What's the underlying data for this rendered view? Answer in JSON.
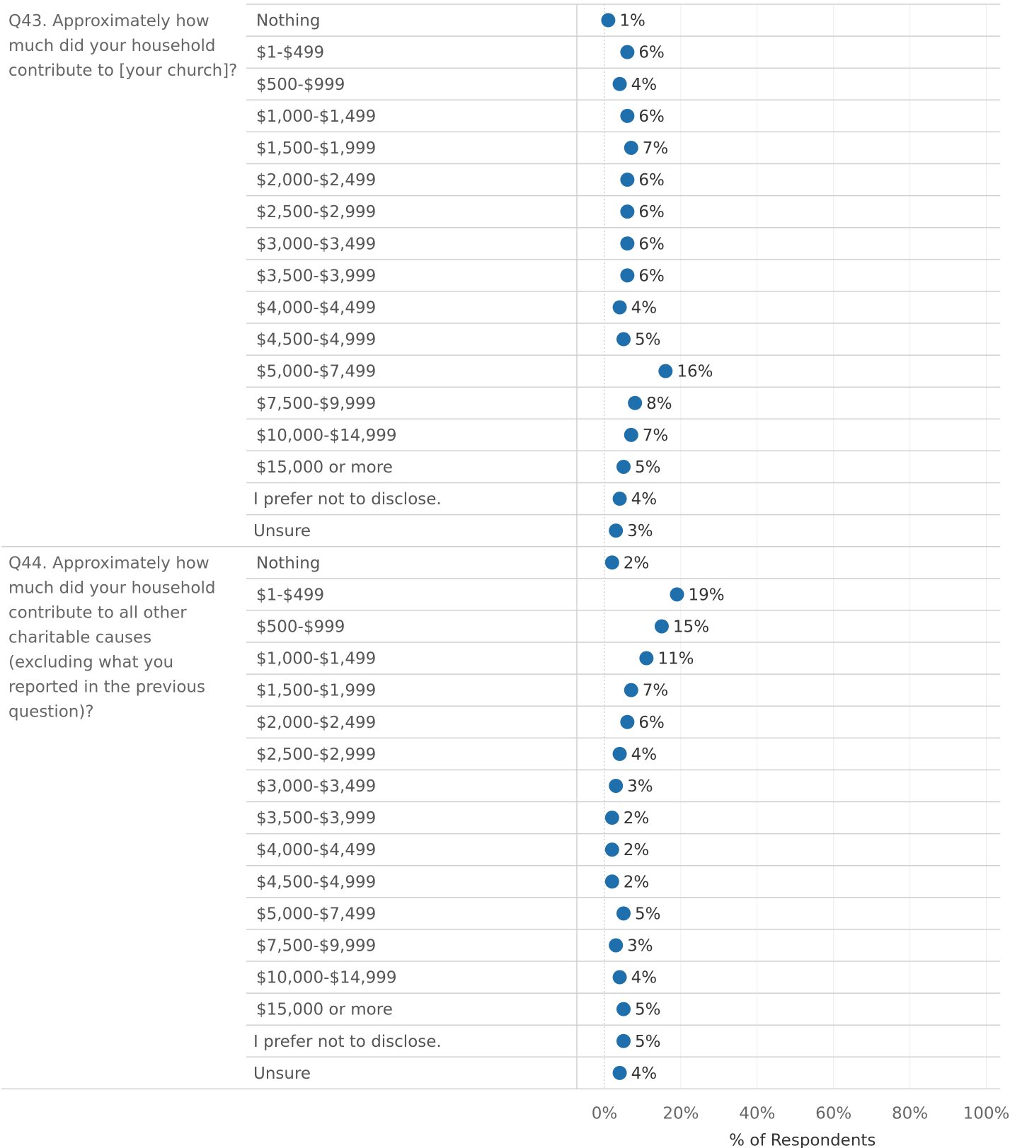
{
  "chart_data": {
    "type": "scatter",
    "xlabel": "% of Respondents",
    "xlim": [
      0,
      100
    ],
    "x_ticks": [
      0,
      20,
      40,
      60,
      80,
      100
    ],
    "x_tick_labels": [
      "0%",
      "20%",
      "40%",
      "60%",
      "80%",
      "100%"
    ],
    "marker_color": "#1f6fad",
    "groups": [
      {
        "question_lines": [
          "Q43. Approximately how",
          "much did your household",
          "contribute to [your church]?"
        ],
        "rows": [
          {
            "category": "Nothing",
            "value": 1,
            "label": "1%"
          },
          {
            "category": "$1-$499",
            "value": 6,
            "label": "6%"
          },
          {
            "category": "$500-$999",
            "value": 4,
            "label": "4%"
          },
          {
            "category": "$1,000-$1,499",
            "value": 6,
            "label": "6%"
          },
          {
            "category": "$1,500-$1,999",
            "value": 7,
            "label": "7%"
          },
          {
            "category": "$2,000-$2,499",
            "value": 6,
            "label": "6%"
          },
          {
            "category": "$2,500-$2,999",
            "value": 6,
            "label": "6%"
          },
          {
            "category": "$3,000-$3,499",
            "value": 6,
            "label": "6%"
          },
          {
            "category": "$3,500-$3,999",
            "value": 6,
            "label": "6%"
          },
          {
            "category": "$4,000-$4,499",
            "value": 4,
            "label": "4%"
          },
          {
            "category": "$4,500-$4,999",
            "value": 5,
            "label": "5%"
          },
          {
            "category": "$5,000-$7,499",
            "value": 16,
            "label": "16%"
          },
          {
            "category": "$7,500-$9,999",
            "value": 8,
            "label": "8%"
          },
          {
            "category": "$10,000-$14,999",
            "value": 7,
            "label": "7%"
          },
          {
            "category": "$15,000 or more",
            "value": 5,
            "label": "5%"
          },
          {
            "category": "I prefer not to disclose.",
            "value": 4,
            "label": "4%"
          },
          {
            "category": "Unsure",
            "value": 3,
            "label": "3%"
          }
        ]
      },
      {
        "question_lines": [
          "Q44. Approximately how",
          "much did your household",
          "contribute to all other",
          "charitable causes",
          "(excluding what you",
          "reported in the previous",
          "question)?"
        ],
        "rows": [
          {
            "category": "Nothing",
            "value": 2,
            "label": "2%"
          },
          {
            "category": "$1-$499",
            "value": 19,
            "label": "19%"
          },
          {
            "category": "$500-$999",
            "value": 15,
            "label": "15%"
          },
          {
            "category": "$1,000-$1,499",
            "value": 11,
            "label": "11%"
          },
          {
            "category": "$1,500-$1,999",
            "value": 7,
            "label": "7%"
          },
          {
            "category": "$2,000-$2,499",
            "value": 6,
            "label": "6%"
          },
          {
            "category": "$2,500-$2,999",
            "value": 4,
            "label": "4%"
          },
          {
            "category": "$3,000-$3,499",
            "value": 3,
            "label": "3%"
          },
          {
            "category": "$3,500-$3,999",
            "value": 2,
            "label": "2%"
          },
          {
            "category": "$4,000-$4,499",
            "value": 2,
            "label": "2%"
          },
          {
            "category": "$4,500-$4,999",
            "value": 2,
            "label": "2%"
          },
          {
            "category": "$5,000-$7,499",
            "value": 5,
            "label": "5%"
          },
          {
            "category": "$7,500-$9,999",
            "value": 3,
            "label": "3%"
          },
          {
            "category": "$10,000-$14,999",
            "value": 4,
            "label": "4%"
          },
          {
            "category": "$15,000 or more",
            "value": 5,
            "label": "5%"
          },
          {
            "category": "I prefer not to disclose.",
            "value": 5,
            "label": "5%"
          },
          {
            "category": "Unsure",
            "value": 4,
            "label": "4%"
          }
        ]
      }
    ]
  }
}
